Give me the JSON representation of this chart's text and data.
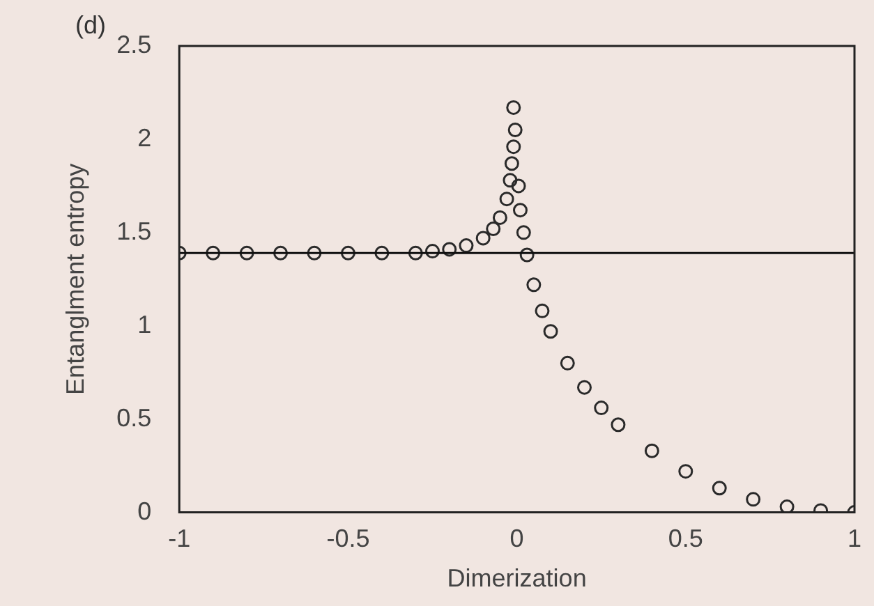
{
  "chart_data": {
    "type": "scatter",
    "xlabel": "Dimerization",
    "ylabel": "Entanglment entropy",
    "annotations": [
      "(d)"
    ],
    "xlim": [
      -1,
      1
    ],
    "xticks": [
      -1,
      -0.5,
      0,
      0.5,
      1
    ],
    "ylim": [
      0,
      2.5
    ],
    "yticks": [
      0,
      0.5,
      1,
      1.5,
      2,
      2.5
    ],
    "grid": false,
    "legend": false,
    "marker": "circle",
    "ref_lines": [
      {
        "axis": "y",
        "value": 1.39,
        "color": "#111111"
      }
    ],
    "series": [
      {
        "color": "#2a2a2a",
        "x": [
          -1,
          -0.9,
          -0.8,
          -0.7,
          -0.6,
          -0.5,
          -0.4,
          -0.3,
          -0.25,
          -0.2,
          -0.15,
          -0.1,
          -0.07,
          -0.05,
          -0.03,
          -0.02,
          -0.015,
          -0.01,
          -0.005,
          -0.01
        ],
        "values": [
          1.39,
          1.39,
          1.39,
          1.39,
          1.39,
          1.39,
          1.39,
          1.39,
          1.4,
          1.41,
          1.43,
          1.47,
          1.52,
          1.58,
          1.68,
          1.78,
          1.87,
          1.96,
          2.05,
          2.17
        ]
      },
      {
        "color": "#2a2a2a",
        "x": [
          0.005,
          0.01,
          0.02,
          0.03,
          0.05,
          0.075,
          0.1,
          0.15,
          0.2,
          0.25,
          0.3,
          0.4,
          0.5,
          0.6,
          0.7,
          0.8,
          0.9,
          1
        ],
        "values": [
          1.75,
          1.62,
          1.5,
          1.38,
          1.22,
          1.08,
          0.97,
          0.8,
          0.67,
          0.56,
          0.47,
          0.33,
          0.22,
          0.13,
          0.07,
          0.03,
          0.01,
          0
        ]
      }
    ]
  }
}
